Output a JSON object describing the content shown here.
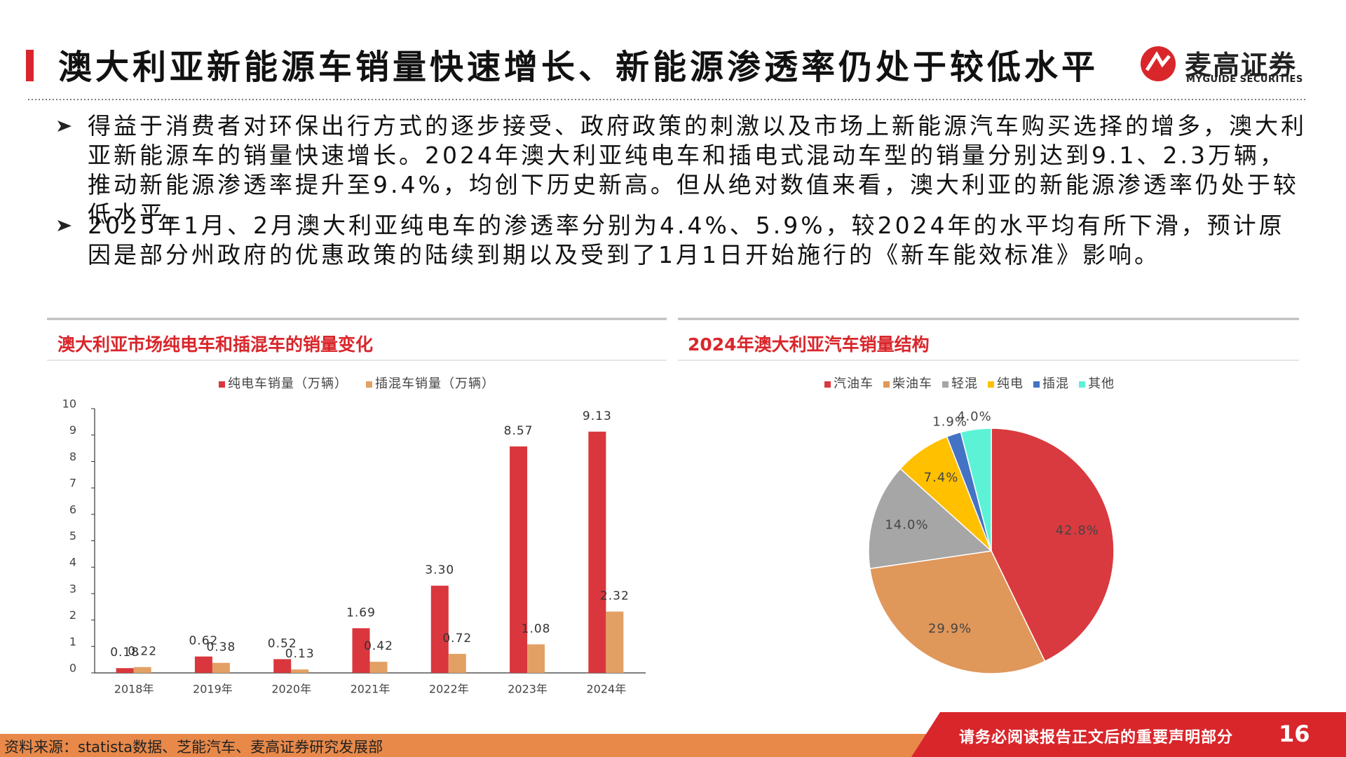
{
  "header": {
    "title": "澳大利亚新能源车销量快速增长、新能源渗透率仍处于较低水平",
    "logo_cn": "麦高证券",
    "logo_en": "MYGUIDE SECURITIES"
  },
  "bullets": [
    "得益于消费者对环保出行方式的逐步接受、政府政策的刺激以及市场上新能源汽车购买选择的增多，澳大利亚新能源车的销量快速增长。2024年澳大利亚纯电车和插电式混动车型的销量分别达到9.1、2.3万辆，推动新能源渗透率提升至9.4%，均创下历史新高。但从绝对数值来看，澳大利亚的新能源渗透率仍处于较低水平。",
    "2025年1月、2月澳大利亚纯电车的渗透率分别为4.4%、5.9%，较2024年的水平均有所下滑，预计原因是部分州政府的优惠政策的陆续到期以及受到了1月1日开始施行的《新车能效标准》影响。"
  ],
  "chart_data": [
    {
      "type": "bar",
      "title": "澳大利亚市场纯电车和插混车的销量变化",
      "categories": [
        "2018年",
        "2019年",
        "2020年",
        "2021年",
        "2022年",
        "2023年",
        "2024年"
      ],
      "series": [
        {
          "name": "纯电车销量（万辆）",
          "color": "#d9373d",
          "values": [
            0.18,
            0.62,
            0.52,
            1.69,
            3.3,
            8.57,
            9.13
          ],
          "value_labels": [
            "0.18",
            "0.62",
            "0.52",
            "1.69",
            "3.30",
            "8.57",
            "9.13"
          ]
        },
        {
          "name": "插混车销量（万辆）",
          "color": "#e3a064",
          "values": [
            0.22,
            0.38,
            0.13,
            0.42,
            0.72,
            1.08,
            2.32
          ],
          "value_labels": [
            "0.22",
            "0.38",
            "0.13",
            "0.42",
            "0.72",
            "1.08",
            "2.32"
          ]
        }
      ],
      "ylim": [
        0,
        10
      ],
      "yticks": [
        0,
        1,
        2,
        3,
        4,
        5,
        6,
        7,
        8,
        9,
        10
      ]
    },
    {
      "type": "pie",
      "title": "2024年澳大利亚汽车销量结构",
      "categories": [
        "汽油车",
        "柴油车",
        "轻混",
        "纯电",
        "插混",
        "其他"
      ],
      "values": [
        42.8,
        29.9,
        14.0,
        7.4,
        1.9,
        4.0
      ],
      "value_labels": [
        "42.8%",
        "29.9%",
        "14.0%",
        "7.4%",
        "1.9%",
        "4.0%"
      ],
      "colors": [
        "#d93a3f",
        "#e0975a",
        "#a6a6a6",
        "#ffc000",
        "#4472c4",
        "#5cf2d6"
      ]
    }
  ],
  "footer": {
    "source": "资料来源：statista数据、芝能汽车、麦高证券研究发展部",
    "disclaimer": "请务必阅读报告正文后的重要声明部分",
    "page_number": 16
  }
}
